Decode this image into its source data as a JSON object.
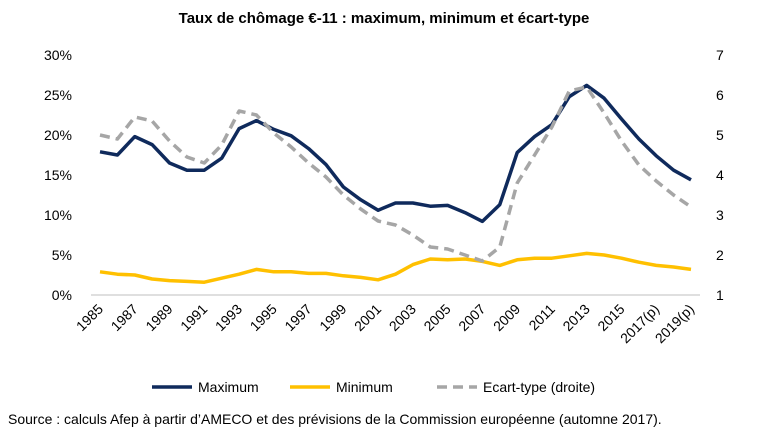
{
  "chart_data": {
    "type": "line",
    "title": "Taux de chômage €-11 : maximum, minimum et écart-type",
    "categories": [
      "1985",
      "1986",
      "1987",
      "1988",
      "1989",
      "1990",
      "1991",
      "1992",
      "1993",
      "1994",
      "1995",
      "1996",
      "1997",
      "1998",
      "1999",
      "2000",
      "2001",
      "2002",
      "2003",
      "2004",
      "2005",
      "2006",
      "2007",
      "2008",
      "2009",
      "2010",
      "2011",
      "2012",
      "2013",
      "2014",
      "2015",
      "2016",
      "2017(p)",
      "2018(p)",
      "2019(p)"
    ],
    "x_tick_labels": [
      "1985",
      "1987",
      "1989",
      "1991",
      "1993",
      "1995",
      "1997",
      "1999",
      "2001",
      "2003",
      "2005",
      "2007",
      "2009",
      "2011",
      "2013",
      "2015",
      "2017(p)",
      "2019(p)"
    ],
    "y_left": {
      "ticks": [
        "0%",
        "5%",
        "10%",
        "15%",
        "20%",
        "25%",
        "30%"
      ],
      "range": [
        0,
        30
      ]
    },
    "y_right": {
      "ticks": [
        "1",
        "2",
        "3",
        "4",
        "5",
        "6",
        "7"
      ],
      "range": [
        1,
        7
      ]
    },
    "series": [
      {
        "name": "Maximum",
        "axis": "left",
        "color": "#0f2a5c",
        "style": "solid",
        "values": [
          17.9,
          17.5,
          19.8,
          18.8,
          16.5,
          15.6,
          15.6,
          17.1,
          20.8,
          21.8,
          20.7,
          19.9,
          18.3,
          16.3,
          13.5,
          11.9,
          10.6,
          11.5,
          11.5,
          11.1,
          11.2,
          10.3,
          9.2,
          11.3,
          17.8,
          19.8,
          21.3,
          24.8,
          26.2,
          24.6,
          22.0,
          19.5,
          17.4,
          15.6,
          14.4
        ]
      },
      {
        "name": "Minimum",
        "axis": "left",
        "color": "#ffc000",
        "style": "solid",
        "values": [
          2.9,
          2.6,
          2.5,
          2.0,
          1.8,
          1.7,
          1.6,
          2.1,
          2.6,
          3.2,
          2.9,
          2.9,
          2.7,
          2.7,
          2.4,
          2.2,
          1.9,
          2.6,
          3.8,
          4.5,
          4.4,
          4.5,
          4.2,
          3.7,
          4.4,
          4.6,
          4.6,
          4.9,
          5.2,
          5.0,
          4.6,
          4.1,
          3.7,
          3.5,
          3.2
        ]
      },
      {
        "name": "Ecart-type (droite)",
        "axis": "right",
        "color": "#a6a6a6",
        "style": "dashed",
        "values": [
          5.0,
          4.9,
          5.45,
          5.35,
          4.85,
          4.45,
          4.3,
          4.75,
          5.6,
          5.5,
          5.05,
          4.7,
          4.3,
          3.95,
          3.5,
          3.15,
          2.85,
          2.75,
          2.5,
          2.2,
          2.15,
          2.0,
          1.85,
          2.2,
          3.8,
          4.5,
          5.2,
          6.1,
          6.2,
          5.55,
          4.85,
          4.25,
          3.85,
          3.5,
          3.2
        ]
      }
    ],
    "legend_position": "bottom",
    "grid": false
  },
  "source_note": "Source : calculs Afep à partir d’AMECO et des prévisions de la Commission européenne (automne 2017)."
}
